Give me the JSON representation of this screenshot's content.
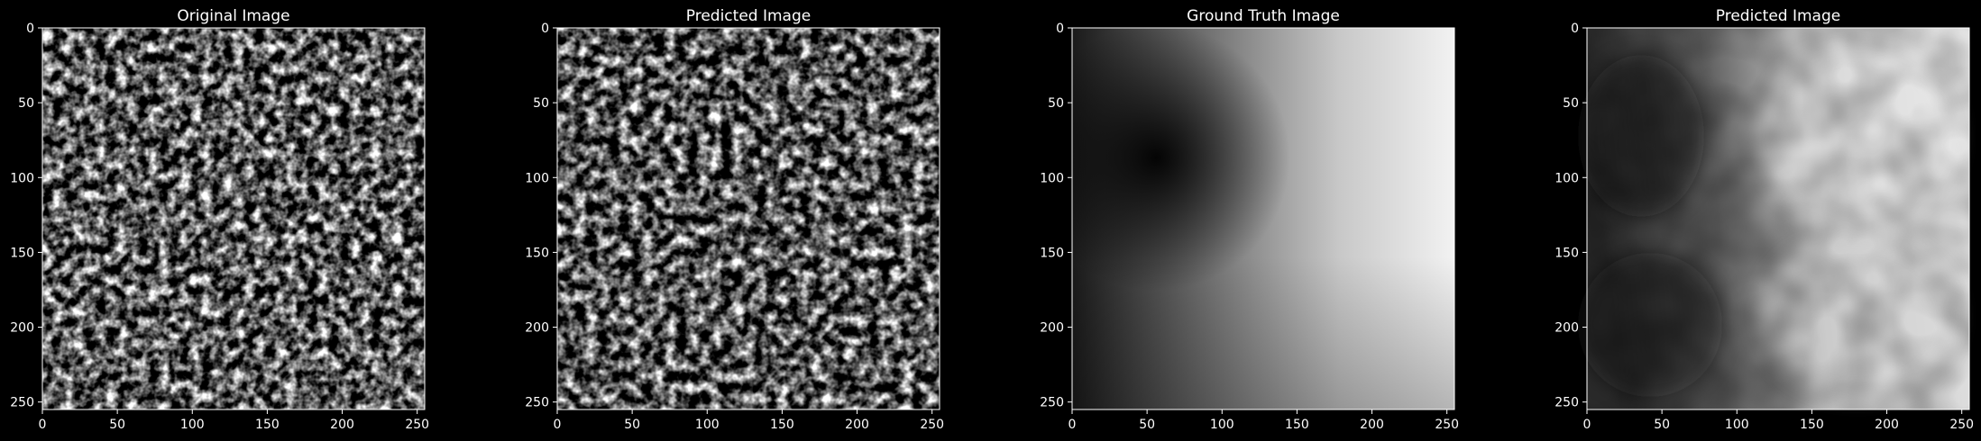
{
  "figure": {
    "background": "#000000",
    "foreground": "#ffffff",
    "panels": [
      {
        "title": "Original Image",
        "kind": "texture",
        "xticks": [
          "0",
          "50",
          "100",
          "150",
          "200",
          "250"
        ],
        "yticks": [
          "0",
          "50",
          "100",
          "150",
          "200",
          "250"
        ],
        "xlim": [
          0,
          255
        ],
        "ylim": [
          255,
          0
        ]
      },
      {
        "title": "Predicted Image",
        "kind": "texture",
        "xticks": [
          "0",
          "50",
          "100",
          "150",
          "200",
          "250"
        ],
        "yticks": [
          "0",
          "50",
          "100",
          "150",
          "200",
          "250"
        ],
        "xlim": [
          0,
          255
        ],
        "ylim": [
          255,
          0
        ]
      },
      {
        "title": "Ground Truth Image",
        "kind": "angular-gradient",
        "xticks": [
          "0",
          "50",
          "100",
          "150",
          "200",
          "250"
        ],
        "yticks": [
          "0",
          "50",
          "100",
          "150",
          "200",
          "250"
        ],
        "xlim": [
          0,
          255
        ],
        "ylim": [
          255,
          0
        ]
      },
      {
        "title": "Predicted Image",
        "kind": "blurred-gradient",
        "xticks": [
          "0",
          "50",
          "100",
          "150",
          "200",
          "250"
        ],
        "yticks": [
          "0",
          "50",
          "100",
          "150",
          "200",
          "250"
        ],
        "xlim": [
          0,
          255
        ],
        "ylim": [
          255,
          0
        ]
      }
    ]
  }
}
